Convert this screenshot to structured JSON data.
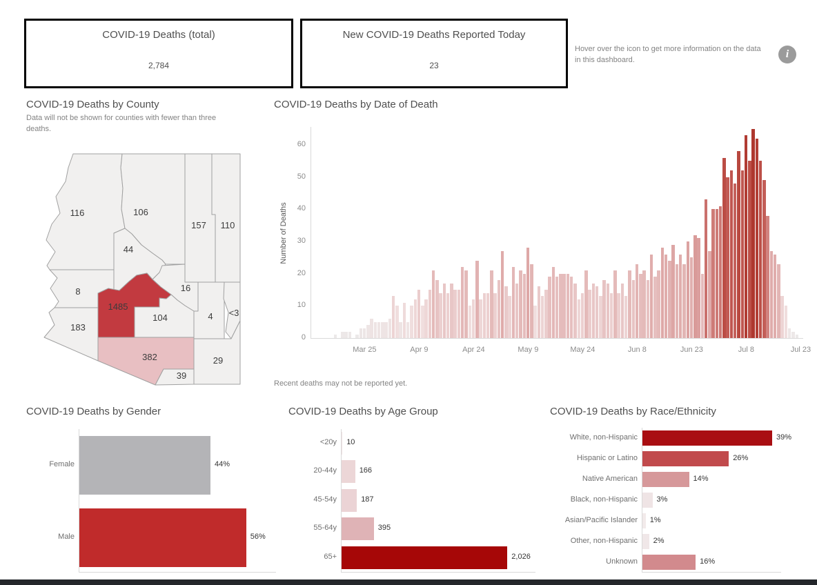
{
  "kpis": [
    {
      "title": "COVID-19 Deaths (total)",
      "value": "2,784"
    },
    {
      "title": "New COVID-19 Deaths Reported Today",
      "value": "23"
    }
  ],
  "info_note": {
    "text": "Hover over the icon to get more information on the data in this dashboard.",
    "icon": "info-icon",
    "glyph": "i",
    "icon_color": "#9b9b9b"
  },
  "county_map": {
    "title": "COVID-19 Deaths by County",
    "subtitle": "Data will not be shown for counties with fewer than three deaths.",
    "highlight_color": "#c23a40",
    "secondary_color": "#e8bfc2",
    "default_color": "#f1f0ef",
    "counties": [
      {
        "county": "Mohave",
        "label": "116",
        "fill": "#f1f0ef"
      },
      {
        "county": "Coconino",
        "label": "106",
        "fill": "#f1f0ef"
      },
      {
        "county": "Navajo",
        "label": "157",
        "fill": "#f1f0ef"
      },
      {
        "county": "Apache",
        "label": "110",
        "fill": "#f1f0ef"
      },
      {
        "county": "Yavapai",
        "label": "44",
        "fill": "#f1f0ef"
      },
      {
        "county": "La Paz",
        "label": "8",
        "fill": "#f1f0ef"
      },
      {
        "county": "Maricopa",
        "label": "1485",
        "fill": "#c23a40"
      },
      {
        "county": "Gila",
        "label": "16",
        "fill": "#f1f0ef"
      },
      {
        "county": "Pinal",
        "label": "104",
        "fill": "#f1f0ef"
      },
      {
        "county": "Graham",
        "label": "4",
        "fill": "#f1f0ef"
      },
      {
        "county": "Greenlee",
        "label": "<3",
        "fill": "#f1f0ef"
      },
      {
        "county": "Yuma",
        "label": "183",
        "fill": "#f1f0ef"
      },
      {
        "county": "Pima",
        "label": "382",
        "fill": "#e8bfc2"
      },
      {
        "county": "Santa Cruz",
        "label": "39",
        "fill": "#f1f0ef"
      },
      {
        "county": "Cochise",
        "label": "29",
        "fill": "#f1f0ef"
      }
    ]
  },
  "chart_data": [
    {
      "id": "deaths_by_date",
      "type": "bar",
      "title": "COVID-19 Deaths by Date of Death",
      "xlabel": "",
      "ylabel": "Number of Deaths",
      "ylim": [
        0,
        65
      ],
      "yticks": [
        0,
        10,
        20,
        30,
        40,
        50,
        60
      ],
      "grid": false,
      "footnote": "Recent deaths may not be reported yet.",
      "xticklabels": [
        "Mar 25",
        "Apr 9",
        "Apr 24",
        "May 9",
        "May 24",
        "Jun 8",
        "Jun 23",
        "Jul 8",
        "Jul 23"
      ],
      "xtick_indices": [
        14,
        29,
        44,
        59,
        74,
        89,
        104,
        119,
        134
      ],
      "values": [
        0,
        0,
        0,
        0,
        0,
        0,
        1,
        0,
        2,
        2,
        2,
        0,
        1,
        3,
        3,
        4,
        6,
        5,
        5,
        5,
        5,
        6,
        13,
        10,
        5,
        11,
        5,
        10,
        12,
        15,
        10,
        12,
        15,
        21,
        18,
        14,
        17,
        14,
        17,
        15,
        15,
        22,
        21,
        10,
        12,
        24,
        12,
        14,
        14,
        21,
        14,
        18,
        27,
        16,
        13,
        22,
        17,
        21,
        20,
        28,
        23,
        10,
        16,
        13,
        15,
        19,
        22,
        19,
        20,
        20,
        20,
        19,
        17,
        12,
        14,
        21,
        15,
        17,
        16,
        13,
        18,
        17,
        14,
        21,
        14,
        17,
        13,
        21,
        18,
        23,
        20,
        21,
        18,
        26,
        19,
        21,
        28,
        26,
        24,
        29,
        23,
        26,
        23,
        30,
        25,
        32,
        31,
        20,
        43,
        27,
        40,
        40,
        41,
        56,
        50,
        52,
        48,
        58,
        52,
        63,
        55,
        65,
        62,
        55,
        49,
        38,
        27,
        26,
        23,
        13,
        10,
        3,
        2,
        1,
        0
      ],
      "color_scale": [
        [
          0,
          "#ECEAEA"
        ],
        [
          10,
          "#F0DEDE"
        ],
        [
          20,
          "#E5BCBC"
        ],
        [
          30,
          "#DCA3A2"
        ],
        [
          40,
          "#CE7B77"
        ],
        [
          50,
          "#C25B55"
        ],
        [
          58,
          "#B8483F"
        ],
        [
          65,
          "#AE372E"
        ]
      ]
    },
    {
      "id": "deaths_by_gender",
      "type": "bar",
      "title": "COVID-19 Deaths by Gender",
      "categories": [
        "Female",
        "Male"
      ],
      "values": [
        44,
        56
      ],
      "value_labels": [
        "44%",
        "56%"
      ],
      "colors": [
        "#b4b4b7",
        "#c02b2b"
      ]
    },
    {
      "id": "deaths_by_age",
      "type": "bar",
      "title": "COVID-19 Deaths by Age Group",
      "categories": [
        "<20y",
        "20-44y",
        "45-54y",
        "55-64y",
        "65+"
      ],
      "values": [
        10,
        166,
        187,
        395,
        2026
      ],
      "value_labels": [
        "10",
        "166",
        "187",
        "395",
        "2,026"
      ],
      "colors": [
        "#f0e2e3",
        "#ecd6d7",
        "#ebd3d5",
        "#dfb3b6",
        "#a60707"
      ]
    },
    {
      "id": "deaths_by_race",
      "type": "bar",
      "title": "COVID-19 Deaths by Race/Ethnicity",
      "categories": [
        "White, non-Hispanic",
        "Hispanic or Latino",
        "Native American",
        "Black, non-Hispanic",
        "Asian/Pacific Islander",
        "Other, non-Hispanic",
        "Unknown"
      ],
      "values": [
        39,
        26,
        14,
        3,
        1,
        2,
        16
      ],
      "value_labels": [
        "39%",
        "26%",
        "14%",
        "3%",
        "1%",
        "2%",
        "16%"
      ],
      "colors": [
        "#a90e12",
        "#c14a4c",
        "#d6989a",
        "#efe4e5",
        "#f2eaea",
        "#f0e7e8",
        "#d28a8d"
      ]
    }
  ]
}
